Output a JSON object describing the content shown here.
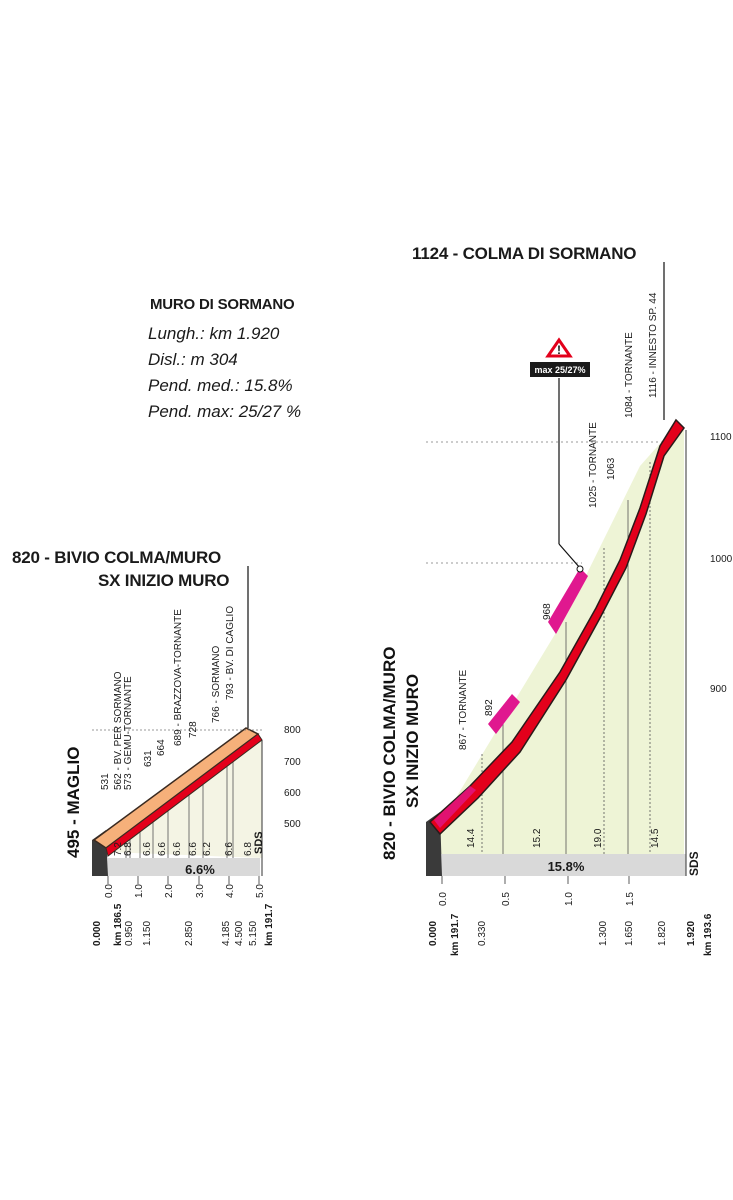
{
  "info": {
    "name": "MURO DI SORMANO",
    "length": "Lungh.: km 1.920",
    "climb": "Disl.: m 304",
    "avg_grade": "Pend. med.: 15.8%",
    "max_grade": "Pend. max: 25/27 %"
  },
  "left_profile": {
    "title_top": "820 - BIVIO COLMA/MURO",
    "title_sub": "SX INIZIO MURO",
    "start_label": "495 - MAGLIO",
    "avg_label": "6.6%",
    "logo": "SDS",
    "altitude_ticks": [
      "800",
      "700",
      "600",
      "500"
    ],
    "km_ticks": [
      "0.0",
      "1.0",
      "2.0",
      "3.0",
      "4.0",
      "5.0"
    ],
    "waypoints": [
      {
        "label": "531",
        "grade": "7.2"
      },
      {
        "label": "562 - BV. PER SORMANO",
        "grade": "6.8"
      },
      {
        "label": "573 - GEMU-TORNANTE",
        "grade": "6.6"
      },
      {
        "label": "631",
        "grade": "6.6"
      },
      {
        "label": "664",
        "grade": "6.6"
      },
      {
        "label": "689 - BRAZZOVA-TORNANTE",
        "grade": "6.6"
      },
      {
        "label": "728",
        "grade": "6.2"
      },
      {
        "label": "766 - SORMANO",
        "grade": "6.6"
      },
      {
        "label": "793 - BV. DI CAGLIO",
        "grade": "6.8"
      }
    ],
    "distances_left": [
      "0.000",
      "km 186.5"
    ],
    "distances": [
      "0.950",
      "1.150",
      "2.850",
      "4.185",
      "4.500",
      "5.150"
    ],
    "end_distance": "km 191.7"
  },
  "right_profile": {
    "title_top": "1124 - COLMA DI SORMANO",
    "start_label_top": "820 - BIVIO COLMA/MURO",
    "start_label_sub": "SX INIZIO MURO",
    "avg_label": "15.8%",
    "logo": "SDS",
    "max_badge": "max 25/27%",
    "altitude_ticks": [
      "1100",
      "1000",
      "900"
    ],
    "km_ticks": [
      "0.0",
      "0.5",
      "1.0",
      "1.5"
    ],
    "waypoints": [
      {
        "label": "867 - TORNANTE"
      },
      {
        "label": "892"
      },
      {
        "label": "968"
      },
      {
        "label": "1025 - TORNANTE"
      },
      {
        "label": "1063"
      },
      {
        "label": "1084 - TORNANTE"
      },
      {
        "label": "1116 - INNESTO SP. 44"
      }
    ],
    "grades": [
      "14.4",
      "15.2",
      "19.0",
      "14.5"
    ],
    "distances_left": [
      "0.000",
      "km 191.7"
    ],
    "distances": [
      "0.330",
      "1.300",
      "1.650",
      "1.820"
    ],
    "distances_right": [
      "1.920",
      "km 193.6"
    ]
  },
  "colors": {
    "road_red": "#e3001b",
    "road_orange": "#f6b07a",
    "road_magenta": "#e0188f",
    "fill_green": "#eef4d6",
    "ground_grey": "#d9d9d9"
  }
}
